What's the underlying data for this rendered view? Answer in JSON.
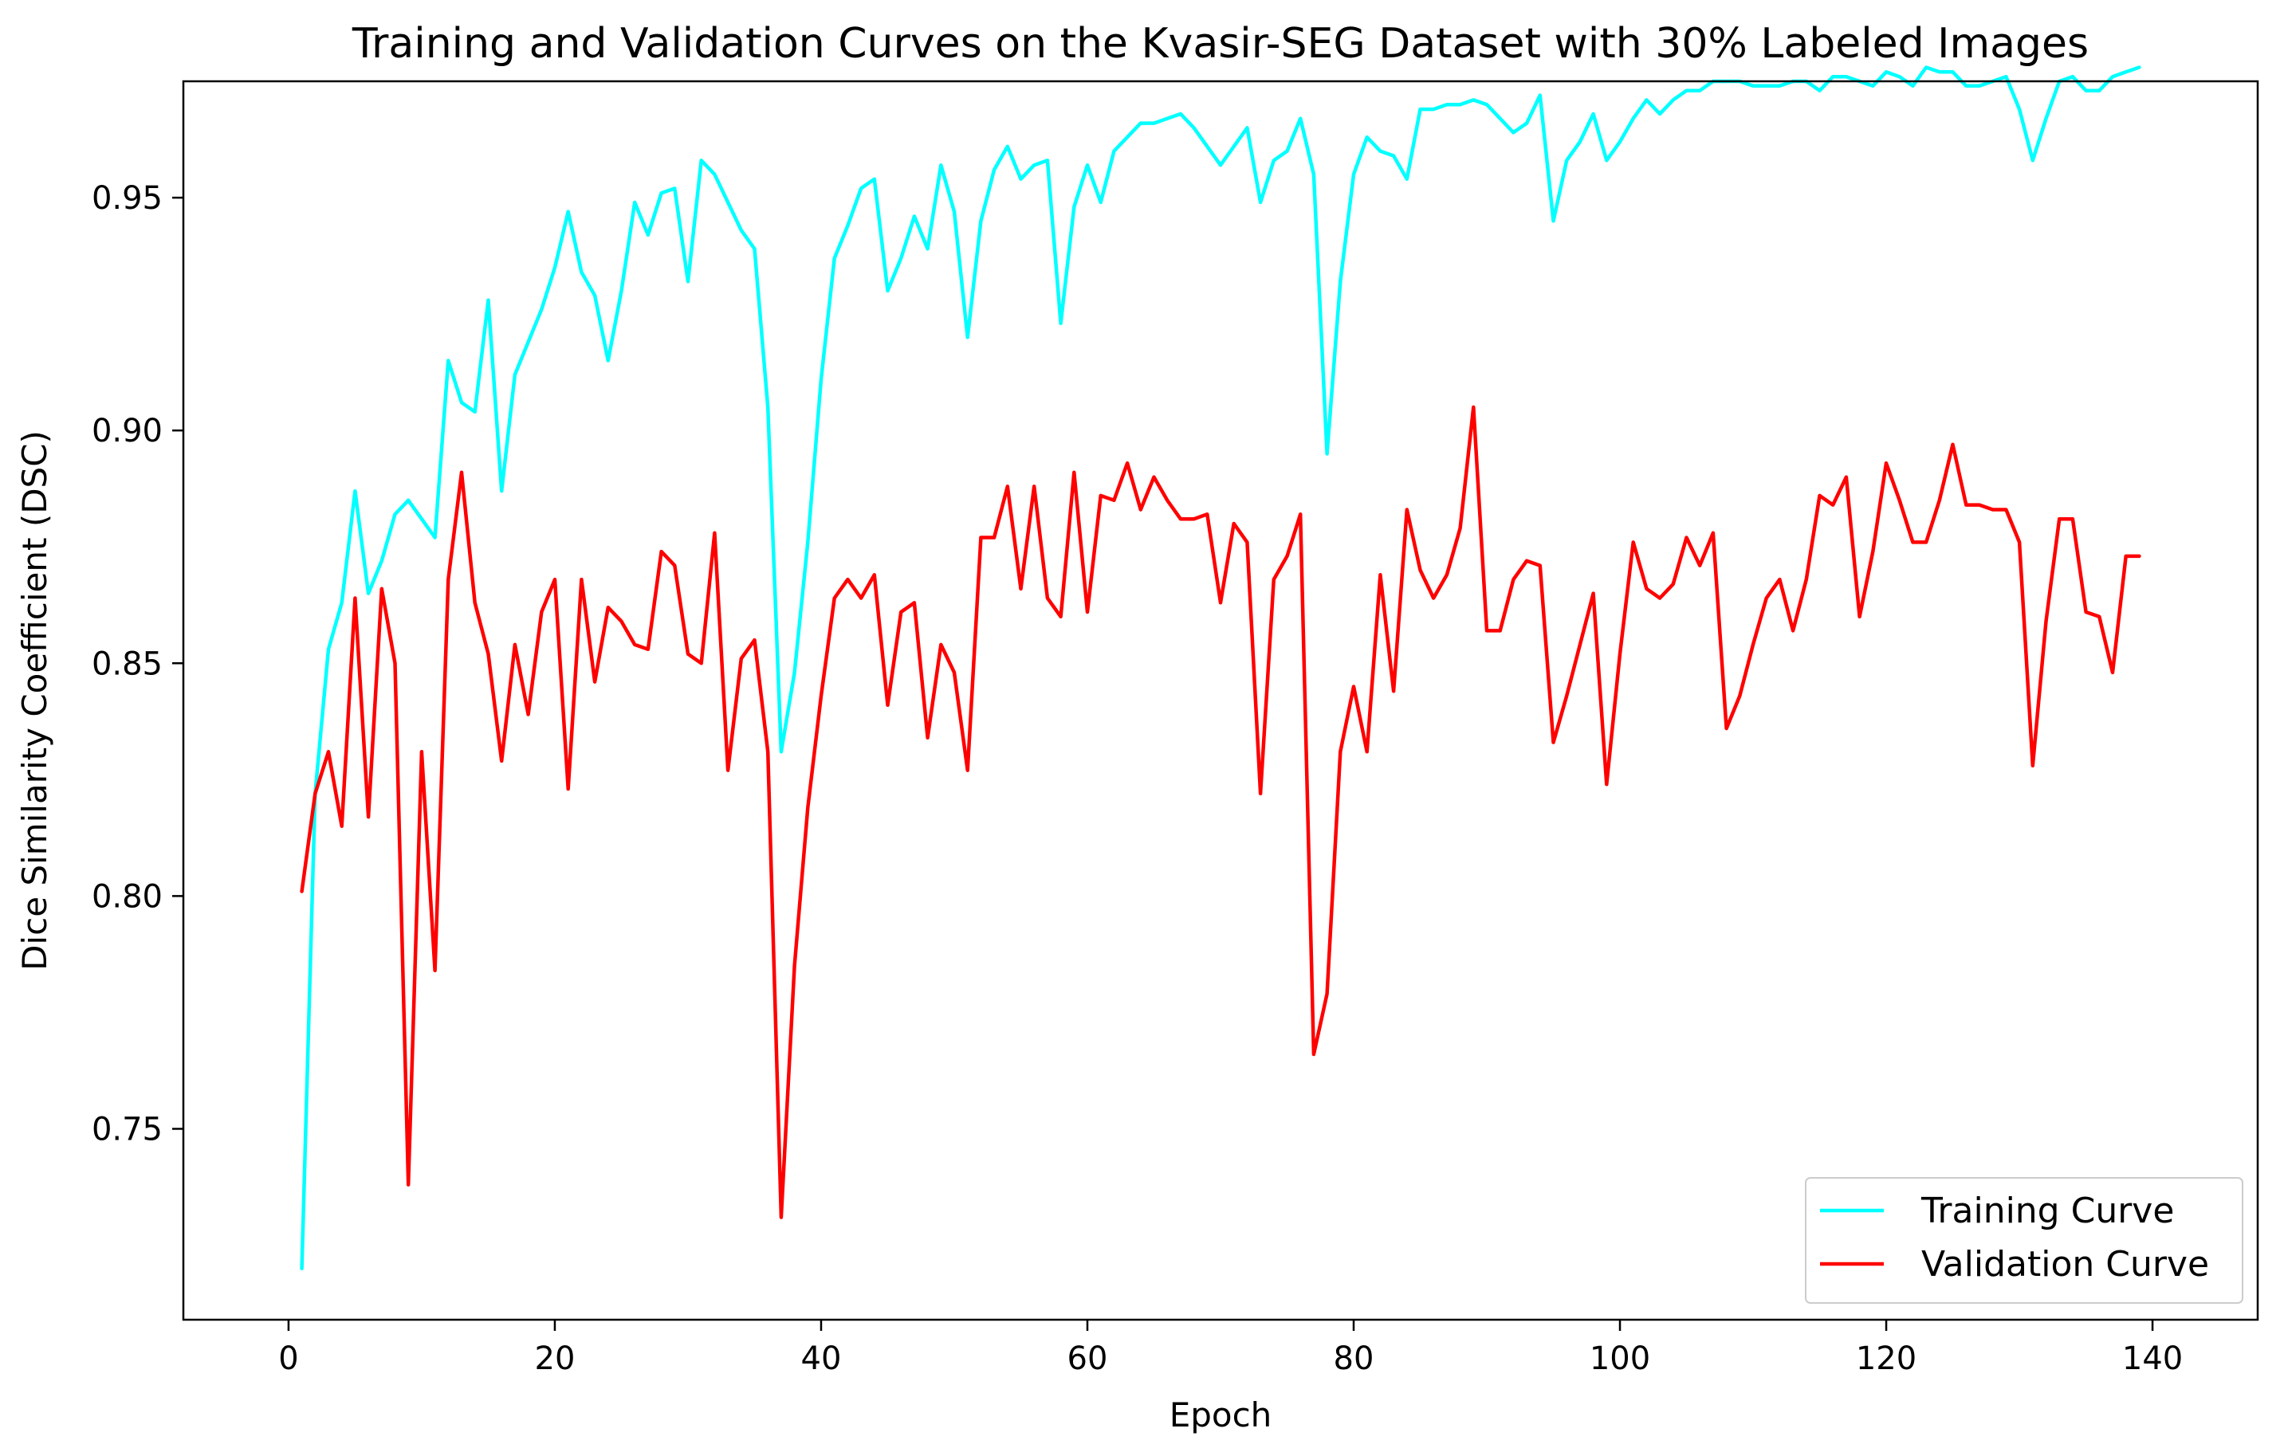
{
  "chart_data": {
    "type": "line",
    "title": "Training and Validation Curves on the Kvasir-SEG Dataset with 30% Labeled Images",
    "xlabel": "Epoch",
    "ylabel": "Dice Similarity Coefficient (DSC)",
    "xlim": [
      -7.9,
      147.9
    ],
    "ylim": [
      0.709,
      0.975
    ],
    "xticks": [
      0,
      20,
      40,
      60,
      80,
      100,
      120,
      140
    ],
    "xtick_labels": [
      "0",
      "20",
      "40",
      "60",
      "80",
      "100",
      "120",
      "140"
    ],
    "yticks": [
      0.75,
      0.8,
      0.85,
      0.9,
      0.95
    ],
    "ytick_labels": [
      "0.75",
      "0.80",
      "0.85",
      "0.90",
      "0.95"
    ],
    "grid": false,
    "legend_position": "bottom-right",
    "x": [
      1,
      2,
      3,
      4,
      5,
      6,
      7,
      8,
      9,
      10,
      11,
      12,
      13,
      14,
      15,
      16,
      17,
      18,
      19,
      20,
      21,
      22,
      23,
      24,
      25,
      26,
      27,
      28,
      29,
      30,
      31,
      32,
      33,
      34,
      35,
      36,
      37,
      38,
      39,
      40,
      41,
      42,
      43,
      44,
      45,
      46,
      47,
      48,
      49,
      50,
      51,
      52,
      53,
      54,
      55,
      56,
      57,
      58,
      59,
      60,
      61,
      62,
      63,
      64,
      65,
      66,
      67,
      68,
      69,
      70,
      71,
      72,
      73,
      74,
      75,
      76,
      77,
      78,
      79,
      80,
      81,
      82,
      83,
      84,
      85,
      86,
      87,
      88,
      89,
      90,
      91,
      92,
      93,
      94,
      95,
      96,
      97,
      98,
      99,
      100,
      101,
      102,
      103,
      104,
      105,
      106,
      107,
      108,
      109,
      110,
      111,
      112,
      113,
      114,
      115,
      116,
      117,
      118,
      119,
      120,
      121,
      122,
      123,
      124,
      125,
      126,
      127,
      128,
      129,
      130,
      131,
      132,
      133,
      134,
      135,
      136,
      137,
      138,
      139
    ],
    "series": [
      {
        "name": "Training Curve",
        "color": "#00FFFF",
        "values": [
          0.72,
          0.822,
          0.853,
          0.863,
          0.887,
          0.865,
          0.872,
          0.882,
          0.885,
          0.881,
          0.877,
          0.915,
          0.906,
          0.904,
          0.928,
          0.887,
          0.912,
          0.919,
          0.926,
          0.935,
          0.947,
          0.934,
          0.929,
          0.915,
          0.93,
          0.949,
          0.942,
          0.951,
          0.952,
          0.932,
          0.958,
          0.955,
          0.949,
          0.943,
          0.939,
          0.905,
          0.831,
          0.848,
          0.876,
          0.911,
          0.937,
          0.944,
          0.952,
          0.954,
          0.93,
          0.937,
          0.946,
          0.939,
          0.957,
          0.947,
          0.92,
          0.945,
          0.956,
          0.961,
          0.954,
          0.957,
          0.958,
          0.923,
          0.948,
          0.957,
          0.949,
          0.96,
          0.963,
          0.966,
          0.966,
          0.967,
          0.968,
          0.965,
          0.961,
          0.957,
          0.961,
          0.965,
          0.949,
          0.958,
          0.96,
          0.967,
          0.955,
          0.895,
          0.932,
          0.955,
          0.963,
          0.96,
          0.959,
          0.954,
          0.969,
          0.969,
          0.97,
          0.97,
          0.971,
          0.97,
          0.967,
          0.964,
          0.966,
          0.972,
          0.945,
          0.958,
          0.962,
          0.968,
          0.958,
          0.962,
          0.967,
          0.971,
          0.968,
          0.971,
          0.973,
          0.973,
          0.975,
          0.975,
          0.975,
          0.974,
          0.974,
          0.974,
          0.975,
          0.975,
          0.973,
          0.976,
          0.976,
          0.975,
          0.974,
          0.977,
          0.976,
          0.974,
          0.978,
          0.977,
          0.977,
          0.974,
          0.974,
          0.975,
          0.976,
          0.969,
          0.958,
          0.967,
          0.975,
          0.976,
          0.973,
          0.973,
          0.976,
          0.977,
          0.978
        ]
      },
      {
        "name": "Validation Curve",
        "color": "#FF0000",
        "values": [
          0.801,
          0.822,
          0.831,
          0.815,
          0.864,
          0.817,
          0.866,
          0.85,
          0.738,
          0.831,
          0.784,
          0.868,
          0.891,
          0.863,
          0.852,
          0.829,
          0.854,
          0.839,
          0.861,
          0.868,
          0.823,
          0.868,
          0.846,
          0.862,
          0.859,
          0.854,
          0.853,
          0.874,
          0.871,
          0.852,
          0.85,
          0.878,
          0.827,
          0.851,
          0.855,
          0.831,
          0.731,
          0.785,
          0.819,
          0.843,
          0.864,
          0.868,
          0.864,
          0.869,
          0.841,
          0.861,
          0.863,
          0.834,
          0.854,
          0.848,
          0.827,
          0.877,
          0.877,
          0.888,
          0.866,
          0.888,
          0.864,
          0.86,
          0.891,
          0.861,
          0.886,
          0.885,
          0.893,
          0.883,
          0.89,
          0.885,
          0.881,
          0.881,
          0.882,
          0.863,
          0.88,
          0.876,
          0.822,
          0.868,
          0.873,
          0.882,
          0.766,
          0.779,
          0.831,
          0.845,
          0.831,
          0.869,
          0.844,
          0.883,
          0.87,
          0.864,
          0.869,
          0.879,
          0.905,
          0.857,
          0.857,
          0.868,
          0.872,
          0.871,
          0.833,
          0.843,
          0.854,
          0.865,
          0.824,
          0.852,
          0.876,
          0.866,
          0.864,
          0.867,
          0.877,
          0.871,
          0.878,
          0.836,
          0.843,
          0.854,
          0.864,
          0.868,
          0.857,
          0.868,
          0.886,
          0.884,
          0.89,
          0.86,
          0.874,
          0.893,
          0.885,
          0.876,
          0.876,
          0.885,
          0.897,
          0.884,
          0.884,
          0.883,
          0.883,
          0.876,
          0.828,
          0.859,
          0.881,
          0.881,
          0.861,
          0.86,
          0.848,
          0.873,
          0.873
        ]
      }
    ]
  }
}
